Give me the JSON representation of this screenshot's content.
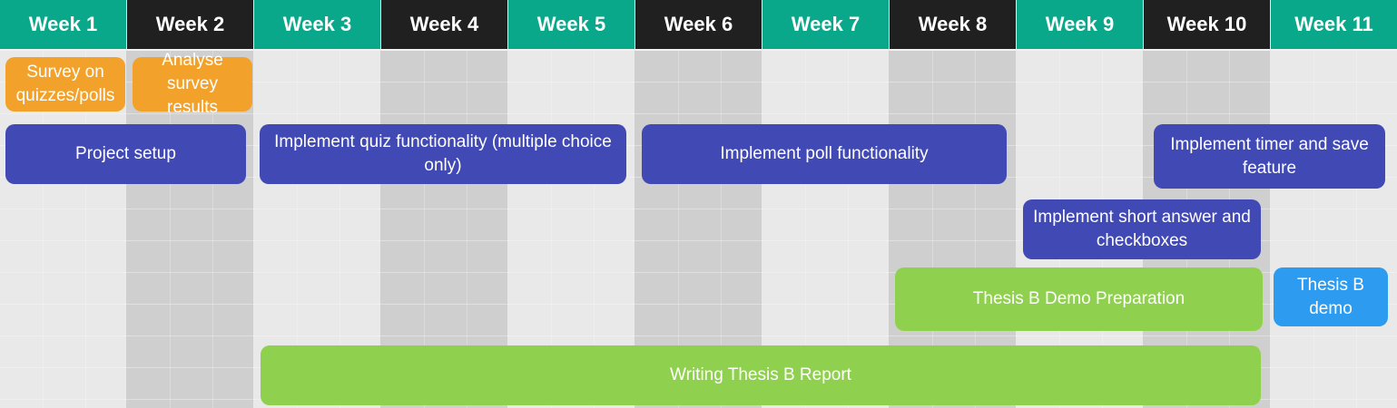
{
  "weeks": [
    {
      "label": "Week 1",
      "color": "#0aa88a"
    },
    {
      "label": "Week 2",
      "color": "#202020"
    },
    {
      "label": "Week 3",
      "color": "#0aa88a"
    },
    {
      "label": "Week 4",
      "color": "#202020"
    },
    {
      "label": "Week 5",
      "color": "#0aa88a"
    },
    {
      "label": "Week 6",
      "color": "#202020"
    },
    {
      "label": "Week 7",
      "color": "#0aa88a"
    },
    {
      "label": "Week 8",
      "color": "#202020"
    },
    {
      "label": "Week 9",
      "color": "#0aa88a"
    },
    {
      "label": "Week 10",
      "color": "#202020"
    },
    {
      "label": "Week 11",
      "color": "#0aa88a"
    }
  ],
  "tasks": [
    {
      "label": "Survey on quizzes/polls",
      "color": "#f2a22a"
    },
    {
      "label": "Analyse survey results",
      "color": "#f2a22a"
    },
    {
      "label": "Project setup",
      "color": "#4149b4"
    },
    {
      "label": "Implement quiz functionality (multiple choice only)",
      "color": "#4149b4"
    },
    {
      "label": "Implement poll functionality",
      "color": "#4149b4"
    },
    {
      "label": "Implement timer and save feature",
      "color": "#4149b4"
    },
    {
      "label": "Implement short answer and checkboxes",
      "color": "#4149b4"
    },
    {
      "label": "Thesis B Demo Preparation",
      "color": "#8fd14f"
    },
    {
      "label": "Thesis B demo",
      "color": "#2d9cf0"
    },
    {
      "label": "Writing Thesis B Report",
      "color": "#8fd14f"
    }
  ]
}
